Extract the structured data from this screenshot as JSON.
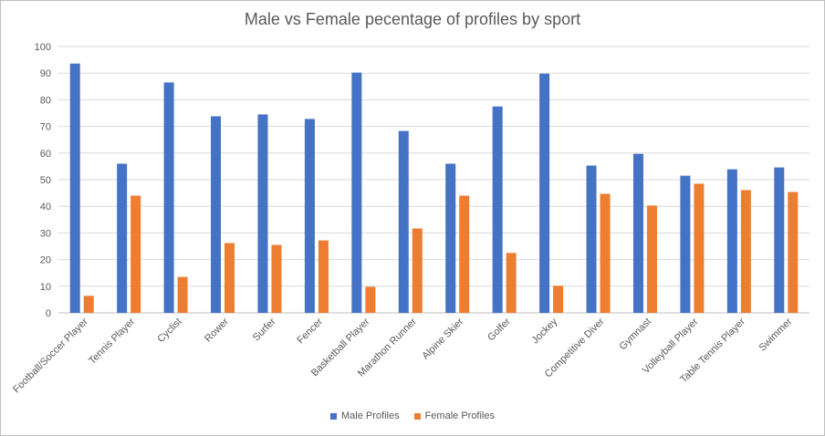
{
  "chart_data": {
    "type": "bar",
    "title": "Male vs Female pecentage of profiles by sport",
    "xlabel": "",
    "ylabel": "",
    "ylim": [
      0,
      100
    ],
    "yticks": [
      0,
      10,
      20,
      30,
      40,
      50,
      60,
      70,
      80,
      90,
      100
    ],
    "grid": true,
    "legend_position": "bottom",
    "categories": [
      "Football/Soccer Player",
      "Tennis Player",
      "Cyclist",
      "Rower",
      "Surfer",
      "Fencer",
      "Basketball Player",
      "Marathon Runner",
      "Alpine Skier",
      "Golfer",
      "Jockey",
      "Competitive Diver",
      "Gymnast",
      "Volleyball Player",
      "Table Tennis Player",
      "Swimmer"
    ],
    "series": [
      {
        "name": "Male Profiles",
        "color": "#4472C4",
        "values": [
          93.6,
          56.0,
          86.5,
          73.8,
          74.5,
          72.8,
          90.2,
          68.3,
          56.0,
          77.5,
          89.8,
          55.3,
          59.7,
          51.5,
          53.9,
          54.6
        ]
      },
      {
        "name": "Female Profiles",
        "color": "#ED7D31",
        "values": [
          6.4,
          44.0,
          13.5,
          26.2,
          25.5,
          27.2,
          9.8,
          31.7,
          44.0,
          22.5,
          10.2,
          44.7,
          40.3,
          48.5,
          46.1,
          45.4
        ]
      }
    ]
  }
}
